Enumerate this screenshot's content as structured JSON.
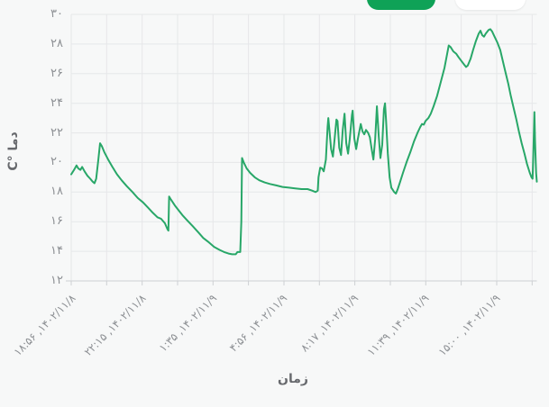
{
  "page": {
    "background": "#f7f8f8"
  },
  "toolbar": {
    "active_button": {
      "label": "",
      "color": "#0fa257"
    },
    "inactive_button": {
      "label": "",
      "color": "#ffffff"
    }
  },
  "chart_data": {
    "type": "line",
    "title": "",
    "xlabel": "زمان",
    "ylabel": "دما °C",
    "legend": [],
    "grid": true,
    "grid_color": "#e6e7e9",
    "axis_color": "#cdd0d3",
    "label_color": "#8d9094",
    "ylim": [
      12,
      30
    ],
    "xlim": [
      0,
      1322
    ],
    "x_unit": "minutes since 1402/11/8 18:56",
    "y_ticks": [
      {
        "value": 12,
        "label": "۱۲"
      },
      {
        "value": 14,
        "label": "۱۴"
      },
      {
        "value": 16,
        "label": "۱۶"
      },
      {
        "value": 18,
        "label": "۱۸"
      },
      {
        "value": 20,
        "label": "۲۰"
      },
      {
        "value": 22,
        "label": "۲۲"
      },
      {
        "value": 24,
        "label": "۲۴"
      },
      {
        "value": 26,
        "label": "۲۶"
      },
      {
        "value": 28,
        "label": "۲۸"
      },
      {
        "value": 30,
        "label": "۳۰"
      }
    ],
    "x_ticks": [
      {
        "t": 0,
        "label": "۱۴۰۲/۱۱/۸, ۱۸:۵۶"
      },
      {
        "t": 199,
        "label": "۱۴۰۲/۱۱/۸, ۲۲:۱۵"
      },
      {
        "t": 399,
        "label": "۱۴۰۲/۱۱/۹, ۱:۳۵"
      },
      {
        "t": 600,
        "label": "۱۴۰۲/۱۱/۹, ۴:۵۶"
      },
      {
        "t": 801,
        "label": "۱۴۰۲/۱۱/۹, ۸:۱۷"
      },
      {
        "t": 1003,
        "label": "۱۴۰۲/۱۱/۹, ۱۱:۳۹"
      },
      {
        "t": 1204,
        "label": "۱۴۰۲/۱۱/۹, ۱۵:۰۰"
      }
    ],
    "series": [
      {
        "name": "دما",
        "color": "#28a768",
        "points": [
          [
            0,
            19.2
          ],
          [
            8,
            19.5
          ],
          [
            15,
            19.8
          ],
          [
            20,
            19.6
          ],
          [
            26,
            19.5
          ],
          [
            31,
            19.7
          ],
          [
            38,
            19.4
          ],
          [
            46,
            19.1
          ],
          [
            54,
            18.9
          ],
          [
            61,
            18.7
          ],
          [
            66,
            18.6
          ],
          [
            71,
            18.9
          ],
          [
            77,
            20.2
          ],
          [
            82,
            21.3
          ],
          [
            87,
            21.1
          ],
          [
            94,
            20.7
          ],
          [
            105,
            20.2
          ],
          [
            117,
            19.7
          ],
          [
            130,
            19.2
          ],
          [
            143,
            18.8
          ],
          [
            158,
            18.4
          ],
          [
            174,
            18.0
          ],
          [
            189,
            17.6
          ],
          [
            204,
            17.3
          ],
          [
            220,
            16.9
          ],
          [
            232,
            16.6
          ],
          [
            245,
            16.3
          ],
          [
            255,
            16.2
          ],
          [
            266,
            15.9
          ],
          [
            273,
            15.5
          ],
          [
            276,
            15.4
          ],
          [
            278,
            17.7
          ],
          [
            283,
            17.5
          ],
          [
            294,
            17.1
          ],
          [
            304,
            16.8
          ],
          [
            317,
            16.4
          ],
          [
            329,
            16.1
          ],
          [
            345,
            15.7
          ],
          [
            360,
            15.3
          ],
          [
            375,
            14.9
          ],
          [
            391,
            14.6
          ],
          [
            406,
            14.3
          ],
          [
            421,
            14.1
          ],
          [
            434,
            13.95
          ],
          [
            447,
            13.85
          ],
          [
            457,
            13.8
          ],
          [
            467,
            13.8
          ],
          [
            472,
            13.95
          ],
          [
            480,
            13.95
          ],
          [
            483,
            16.0
          ],
          [
            485,
            20.3
          ],
          [
            490,
            20.0
          ],
          [
            498,
            19.6
          ],
          [
            508,
            19.3
          ],
          [
            521,
            19.0
          ],
          [
            534,
            18.8
          ],
          [
            549,
            18.65
          ],
          [
            564,
            18.55
          ],
          [
            582,
            18.45
          ],
          [
            600,
            18.35
          ],
          [
            618,
            18.3
          ],
          [
            636,
            18.25
          ],
          [
            654,
            18.2
          ],
          [
            671,
            18.2
          ],
          [
            684,
            18.1
          ],
          [
            694,
            18.0
          ],
          [
            700,
            18.1
          ],
          [
            702,
            19.0
          ],
          [
            707,
            19.65
          ],
          [
            712,
            19.6
          ],
          [
            717,
            19.4
          ],
          [
            723,
            20.2
          ],
          [
            728,
            22.4
          ],
          [
            730,
            23.0
          ],
          [
            733,
            22.2
          ],
          [
            738,
            20.9
          ],
          [
            743,
            20.4
          ],
          [
            748,
            21.6
          ],
          [
            753,
            22.9
          ],
          [
            756,
            22.8
          ],
          [
            761,
            21.0
          ],
          [
            766,
            20.5
          ],
          [
            771,
            22.2
          ],
          [
            776,
            23.3
          ],
          [
            781,
            21.3
          ],
          [
            786,
            20.6
          ],
          [
            791,
            21.6
          ],
          [
            797,
            23.2
          ],
          [
            799,
            23.5
          ],
          [
            804,
            21.6
          ],
          [
            809,
            20.9
          ],
          [
            814,
            21.6
          ],
          [
            822,
            22.6
          ],
          [
            827,
            22.1
          ],
          [
            832,
            21.9
          ],
          [
            837,
            22.2
          ],
          [
            843,
            22.0
          ],
          [
            848,
            21.7
          ],
          [
            853,
            20.9
          ],
          [
            858,
            20.2
          ],
          [
            863,
            21.6
          ],
          [
            868,
            23.8
          ],
          [
            873,
            21.8
          ],
          [
            878,
            20.3
          ],
          [
            883,
            21.2
          ],
          [
            888,
            23.6
          ],
          [
            891,
            24.0
          ],
          [
            894,
            22.8
          ],
          [
            899,
            20.6
          ],
          [
            904,
            19.0
          ],
          [
            909,
            18.3
          ],
          [
            917,
            18.0
          ],
          [
            922,
            17.9
          ],
          [
            927,
            18.2
          ],
          [
            934,
            18.7
          ],
          [
            942,
            19.3
          ],
          [
            952,
            20.0
          ],
          [
            963,
            20.7
          ],
          [
            973,
            21.4
          ],
          [
            983,
            22.0
          ],
          [
            991,
            22.4
          ],
          [
            996,
            22.6
          ],
          [
            1001,
            22.55
          ],
          [
            1006,
            22.8
          ],
          [
            1014,
            23.0
          ],
          [
            1021,
            23.3
          ],
          [
            1029,
            23.8
          ],
          [
            1039,
            24.5
          ],
          [
            1049,
            25.4
          ],
          [
            1060,
            26.4
          ],
          [
            1067,
            27.3
          ],
          [
            1072,
            27.9
          ],
          [
            1077,
            27.8
          ],
          [
            1085,
            27.5
          ],
          [
            1093,
            27.35
          ],
          [
            1100,
            27.1
          ],
          [
            1108,
            26.85
          ],
          [
            1116,
            26.6
          ],
          [
            1121,
            26.45
          ],
          [
            1126,
            26.55
          ],
          [
            1134,
            27.0
          ],
          [
            1141,
            27.6
          ],
          [
            1149,
            28.2
          ],
          [
            1157,
            28.7
          ],
          [
            1162,
            28.9
          ],
          [
            1167,
            28.6
          ],
          [
            1172,
            28.5
          ],
          [
            1177,
            28.7
          ],
          [
            1185,
            28.95
          ],
          [
            1190,
            29.0
          ],
          [
            1195,
            28.85
          ],
          [
            1202,
            28.5
          ],
          [
            1210,
            28.1
          ],
          [
            1218,
            27.6
          ],
          [
            1225,
            26.9
          ],
          [
            1233,
            26.1
          ],
          [
            1241,
            25.3
          ],
          [
            1248,
            24.5
          ],
          [
            1256,
            23.7
          ],
          [
            1264,
            22.9
          ],
          [
            1271,
            22.1
          ],
          [
            1279,
            21.3
          ],
          [
            1287,
            20.6
          ],
          [
            1294,
            19.9
          ],
          [
            1302,
            19.3
          ],
          [
            1307,
            19.0
          ],
          [
            1310,
            18.9
          ],
          [
            1312,
            20.5
          ],
          [
            1315,
            23.4
          ],
          [
            1317,
            21.5
          ],
          [
            1320,
            19.3
          ],
          [
            1322,
            18.7
          ]
        ]
      }
    ],
    "legend_position": "none"
  }
}
